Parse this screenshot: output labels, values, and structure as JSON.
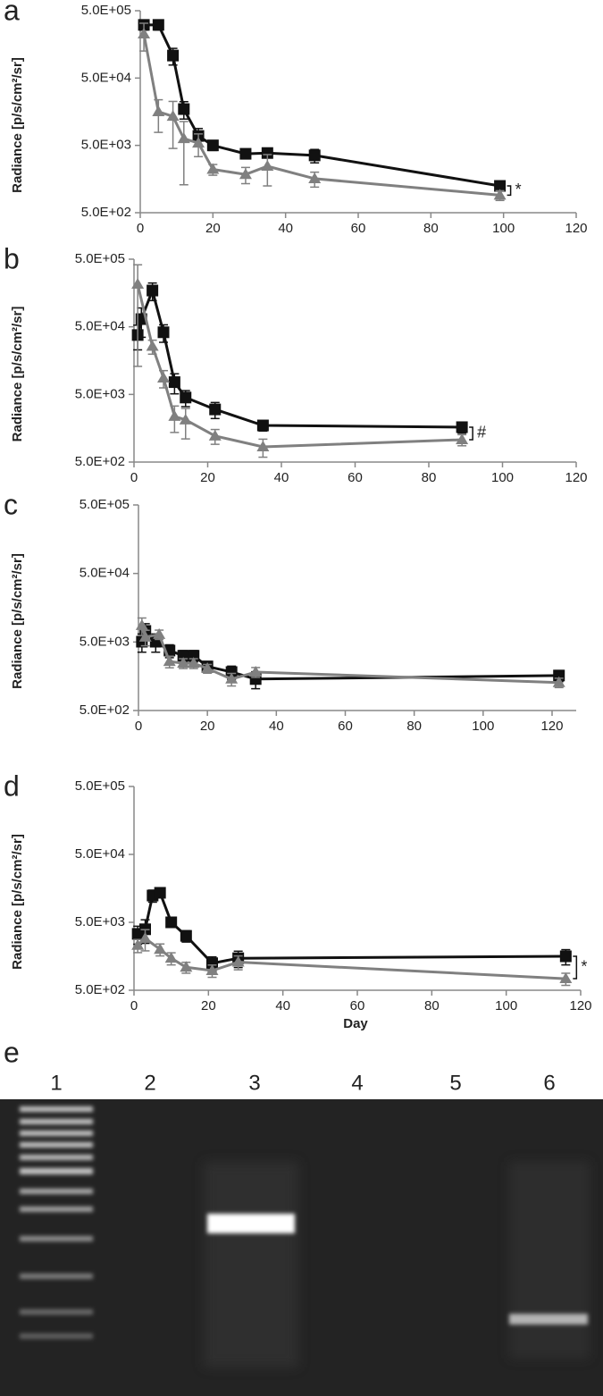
{
  "chart_data": [
    {
      "type": "line",
      "panel_label": "a",
      "ylabel": "Radiance [p/s/cm²/sr]",
      "log_y": true,
      "xlim": [
        0,
        120
      ],
      "xticks": [
        0,
        20,
        40,
        60,
        80,
        100,
        120
      ],
      "ylim": [
        500,
        500000
      ],
      "yticks": [
        {
          "value": 500,
          "label": "5.0E+02"
        },
        {
          "value": 5000,
          "label": "5.0E+03"
        },
        {
          "value": 50000,
          "label": "5.0E+04"
        },
        {
          "value": 500000,
          "label": "5.0E+05"
        }
      ],
      "annotation": "*",
      "series": [
        {
          "color": "#111111",
          "marker": "square",
          "x": [
            1,
            5,
            9,
            12,
            16,
            20,
            29,
            35,
            48,
            99
          ],
          "values": [
            308000,
            308000,
            108000,
            17300,
            6900,
            5000,
            3750,
            3850,
            3550,
            1250
          ],
          "errors": [
            50000,
            50000,
            30000,
            5000,
            2000,
            800,
            600,
            600,
            800,
            200
          ]
        },
        {
          "color": "#808080",
          "marker": "triangle",
          "x": [
            1,
            5,
            9,
            12,
            16,
            20,
            29,
            35,
            48,
            99
          ],
          "values": [
            226000,
            15800,
            13500,
            6300,
            5400,
            2200,
            1850,
            2450,
            1600,
            910
          ],
          "errors": [
            100000,
            8000,
            9000,
            5000,
            2000,
            400,
            500,
            1200,
            400,
            150
          ]
        }
      ]
    },
    {
      "type": "line",
      "panel_label": "b",
      "ylabel": "Radiance [p/s/cm²/sr]",
      "log_y": true,
      "xlim": [
        0,
        120
      ],
      "xticks": [
        0,
        20,
        40,
        60,
        80,
        100,
        120
      ],
      "ylim": [
        500,
        500000
      ],
      "yticks": [
        {
          "value": 500,
          "label": "5.0E+02"
        },
        {
          "value": 5000,
          "label": "5.0E+03"
        },
        {
          "value": 50000,
          "label": "5.0E+04"
        },
        {
          "value": 500000,
          "label": "5.0E+05"
        }
      ],
      "annotation": "#",
      "series": [
        {
          "color": "#111111",
          "marker": "square",
          "x": [
            1,
            2,
            5,
            8,
            11,
            14,
            22,
            35,
            89
          ],
          "values": [
            37800,
            65000,
            172000,
            41500,
            7600,
            4500,
            3000,
            1740,
            1640
          ],
          "errors": [
            15000,
            30000,
            50000,
            12000,
            2500,
            1200,
            800,
            300,
            300
          ]
        },
        {
          "color": "#808080",
          "marker": "triangle",
          "x": [
            1,
            5,
            8,
            11,
            14,
            22,
            35,
            89
          ],
          "values": [
            213000,
            25700,
            8750,
            2370,
            2100,
            1215,
            840,
            1070
          ],
          "errors": [
            200000,
            6000,
            2500,
            1000,
            1000,
            300,
            250,
            200
          ]
        }
      ]
    },
    {
      "type": "line",
      "panel_label": "c",
      "ylabel": "Radiance [p/s/cm²/sr]",
      "log_y": true,
      "xlim": [
        0,
        127
      ],
      "xticks": [
        0,
        20,
        40,
        60,
        80,
        100,
        120
      ],
      "ylim": [
        500,
        500000
      ],
      "yticks": [
        {
          "value": 500,
          "label": "5.0E+02"
        },
        {
          "value": 5000,
          "label": "5.0E+03"
        },
        {
          "value": 50000,
          "label": "5.0E+04"
        },
        {
          "value": 500000,
          "label": "5.0E+05"
        }
      ],
      "series": [
        {
          "color": "#111111",
          "marker": "square",
          "x": [
            1,
            2,
            5,
            9,
            13,
            16,
            20,
            27,
            34,
            122
          ],
          "values": [
            5050,
            7250,
            5050,
            3750,
            3150,
            3150,
            2200,
            1820,
            1440,
            1620
          ],
          "errors": [
            1500,
            2000,
            1500,
            800,
            600,
            600,
            400,
            400,
            400,
            300
          ]
        },
        {
          "color": "#808080",
          "marker": "triangle",
          "x": [
            1,
            2,
            6,
            9,
            13,
            16,
            20,
            27,
            34,
            122
          ],
          "values": [
            8700,
            5900,
            6450,
            2600,
            2450,
            2450,
            2050,
            1440,
            1820,
            1280
          ],
          "errors": [
            2500,
            1500,
            1000,
            500,
            400,
            400,
            300,
            300,
            300,
            200
          ]
        }
      ]
    },
    {
      "type": "line",
      "panel_label": "d",
      "ylabel": "Radiance [p/s/cm²/sr]",
      "xlabel": "Day",
      "log_y": true,
      "xlim": [
        0,
        120
      ],
      "xticks": [
        0,
        20,
        40,
        60,
        80,
        100,
        120
      ],
      "ylim": [
        500,
        500000
      ],
      "yticks": [
        {
          "value": 500,
          "label": "5.0E+02"
        },
        {
          "value": 5000,
          "label": "5.0E+03"
        },
        {
          "value": 50000,
          "label": "5.0E+04"
        },
        {
          "value": 500000,
          "label": "5.0E+05"
        }
      ],
      "annotation": "*",
      "series": [
        {
          "color": "#111111",
          "marker": "square",
          "x": [
            1,
            3,
            5,
            7,
            10,
            14,
            21,
            28,
            116
          ],
          "values": [
            3380,
            3950,
            12400,
            13600,
            5000,
            3160,
            1250,
            1480,
            1580
          ],
          "errors": [
            1000,
            1500,
            2500,
            2000,
            800,
            600,
            300,
            400,
            400
          ]
        },
        {
          "color": "#808080",
          "marker": "triangle",
          "x": [
            1,
            3,
            7,
            10,
            14,
            21,
            28,
            116
          ],
          "values": [
            2290,
            2900,
            2000,
            1480,
            1090,
            975,
            1300,
            740
          ],
          "errors": [
            500,
            1000,
            400,
            300,
            200,
            200,
            300,
            150
          ]
        }
      ]
    }
  ],
  "gel": {
    "panel_label": "e",
    "lanes": [
      "1",
      "2",
      "3",
      "4",
      "5",
      "6"
    ]
  }
}
